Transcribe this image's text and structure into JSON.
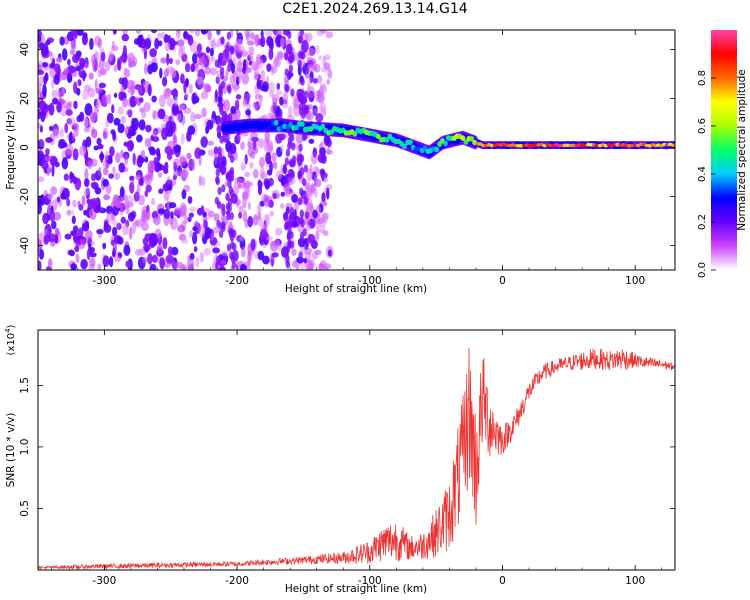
{
  "figure": {
    "title": "C2E1.2024.269.13.14.G14"
  },
  "chart_data": [
    {
      "type": "heatmap",
      "xlabel": "Height of straight line (km)",
      "ylabel": "Frequency (Hz)",
      "xlim": [
        -350,
        130
      ],
      "ylim": [
        -50,
        48
      ],
      "xticks": [
        -300,
        -200,
        -100,
        0,
        100
      ],
      "xtick_labels": [
        "-300",
        "-200",
        "-100",
        "0",
        "100"
      ],
      "yticks": [
        -40,
        -20,
        0,
        20,
        40
      ],
      "ytick_labels": [
        "-40",
        "-20",
        "0",
        "20",
        "40"
      ],
      "colorbar": {
        "label": "Normalized spectral amplitude",
        "range": [
          0,
          1
        ],
        "ticks": [
          0.0,
          0.2,
          0.4,
          0.6,
          0.8
        ],
        "tick_labels": [
          "0.0",
          "0.2",
          "0.4",
          "0.6",
          "0.8"
        ],
        "colormap": [
          "#ffffff",
          "#cc44ff",
          "#6600ff",
          "#0000ff",
          "#00ccff",
          "#00ff66",
          "#aaff00",
          "#ffff00",
          "#ff6600",
          "#ff0000",
          "#ff44aa"
        ]
      },
      "ridge": {
        "x": [
          -210,
          -190,
          -165,
          -150,
          -120,
          -100,
          -80,
          -65,
          -55,
          -45,
          -30,
          -15,
          0,
          40,
          80,
          130
        ],
        "freq": [
          8,
          9,
          9,
          8,
          7,
          5,
          3,
          0,
          -2,
          2,
          4,
          1,
          1,
          1,
          1,
          1
        ],
        "amplitude": [
          0.3,
          0.35,
          0.45,
          0.5,
          0.55,
          0.55,
          0.5,
          0.4,
          0.45,
          0.55,
          0.6,
          0.75,
          0.85,
          0.9,
          0.9,
          0.9
        ]
      },
      "noise_region_x": [
        -350,
        -150
      ],
      "grid": false
    },
    {
      "type": "line",
      "xlabel": "Height of straight line (km)",
      "ylabel": "SNR (10 * v/v)",
      "y_multiplier_label": "(x10",
      "y_multiplier_exp": "4",
      "xlim": [
        -350,
        130
      ],
      "ylim": [
        0,
        1.95
      ],
      "xticks": [
        -300,
        -200,
        -100,
        0,
        100
      ],
      "xtick_labels": [
        "-300",
        "-200",
        "-100",
        "0",
        "100"
      ],
      "yticks": [
        0.5,
        1.0,
        1.5
      ],
      "ytick_labels": [
        "0.5",
        "1.0",
        "1.5"
      ],
      "series": [
        {
          "color": "#ee3333",
          "x": [
            -350,
            -300,
            -250,
            -200,
            -150,
            -120,
            -100,
            -90,
            -80,
            -70,
            -60,
            -50,
            -40,
            -30,
            -25,
            -20,
            -15,
            -10,
            0,
            10,
            20,
            30,
            40,
            50,
            60,
            70,
            80,
            90,
            100,
            110,
            120,
            130
          ],
          "y": [
            0.02,
            0.03,
            0.04,
            0.05,
            0.08,
            0.1,
            0.15,
            0.22,
            0.25,
            0.18,
            0.2,
            0.3,
            0.45,
            0.9,
            1.3,
            0.8,
            1.4,
            1.2,
            1.05,
            1.2,
            1.45,
            1.6,
            1.65,
            1.68,
            1.7,
            1.72,
            1.7,
            1.72,
            1.7,
            1.68,
            1.67,
            1.65
          ],
          "noise": [
            0.01,
            0.02,
            0.02,
            0.02,
            0.03,
            0.05,
            0.1,
            0.15,
            0.18,
            0.1,
            0.12,
            0.2,
            0.3,
            0.5,
            0.6,
            0.5,
            0.4,
            0.3,
            0.12,
            0.1,
            0.08,
            0.07,
            0.06,
            0.06,
            0.08,
            0.09,
            0.08,
            0.1,
            0.06,
            0.05,
            0.04,
            0.03
          ]
        }
      ]
    }
  ]
}
